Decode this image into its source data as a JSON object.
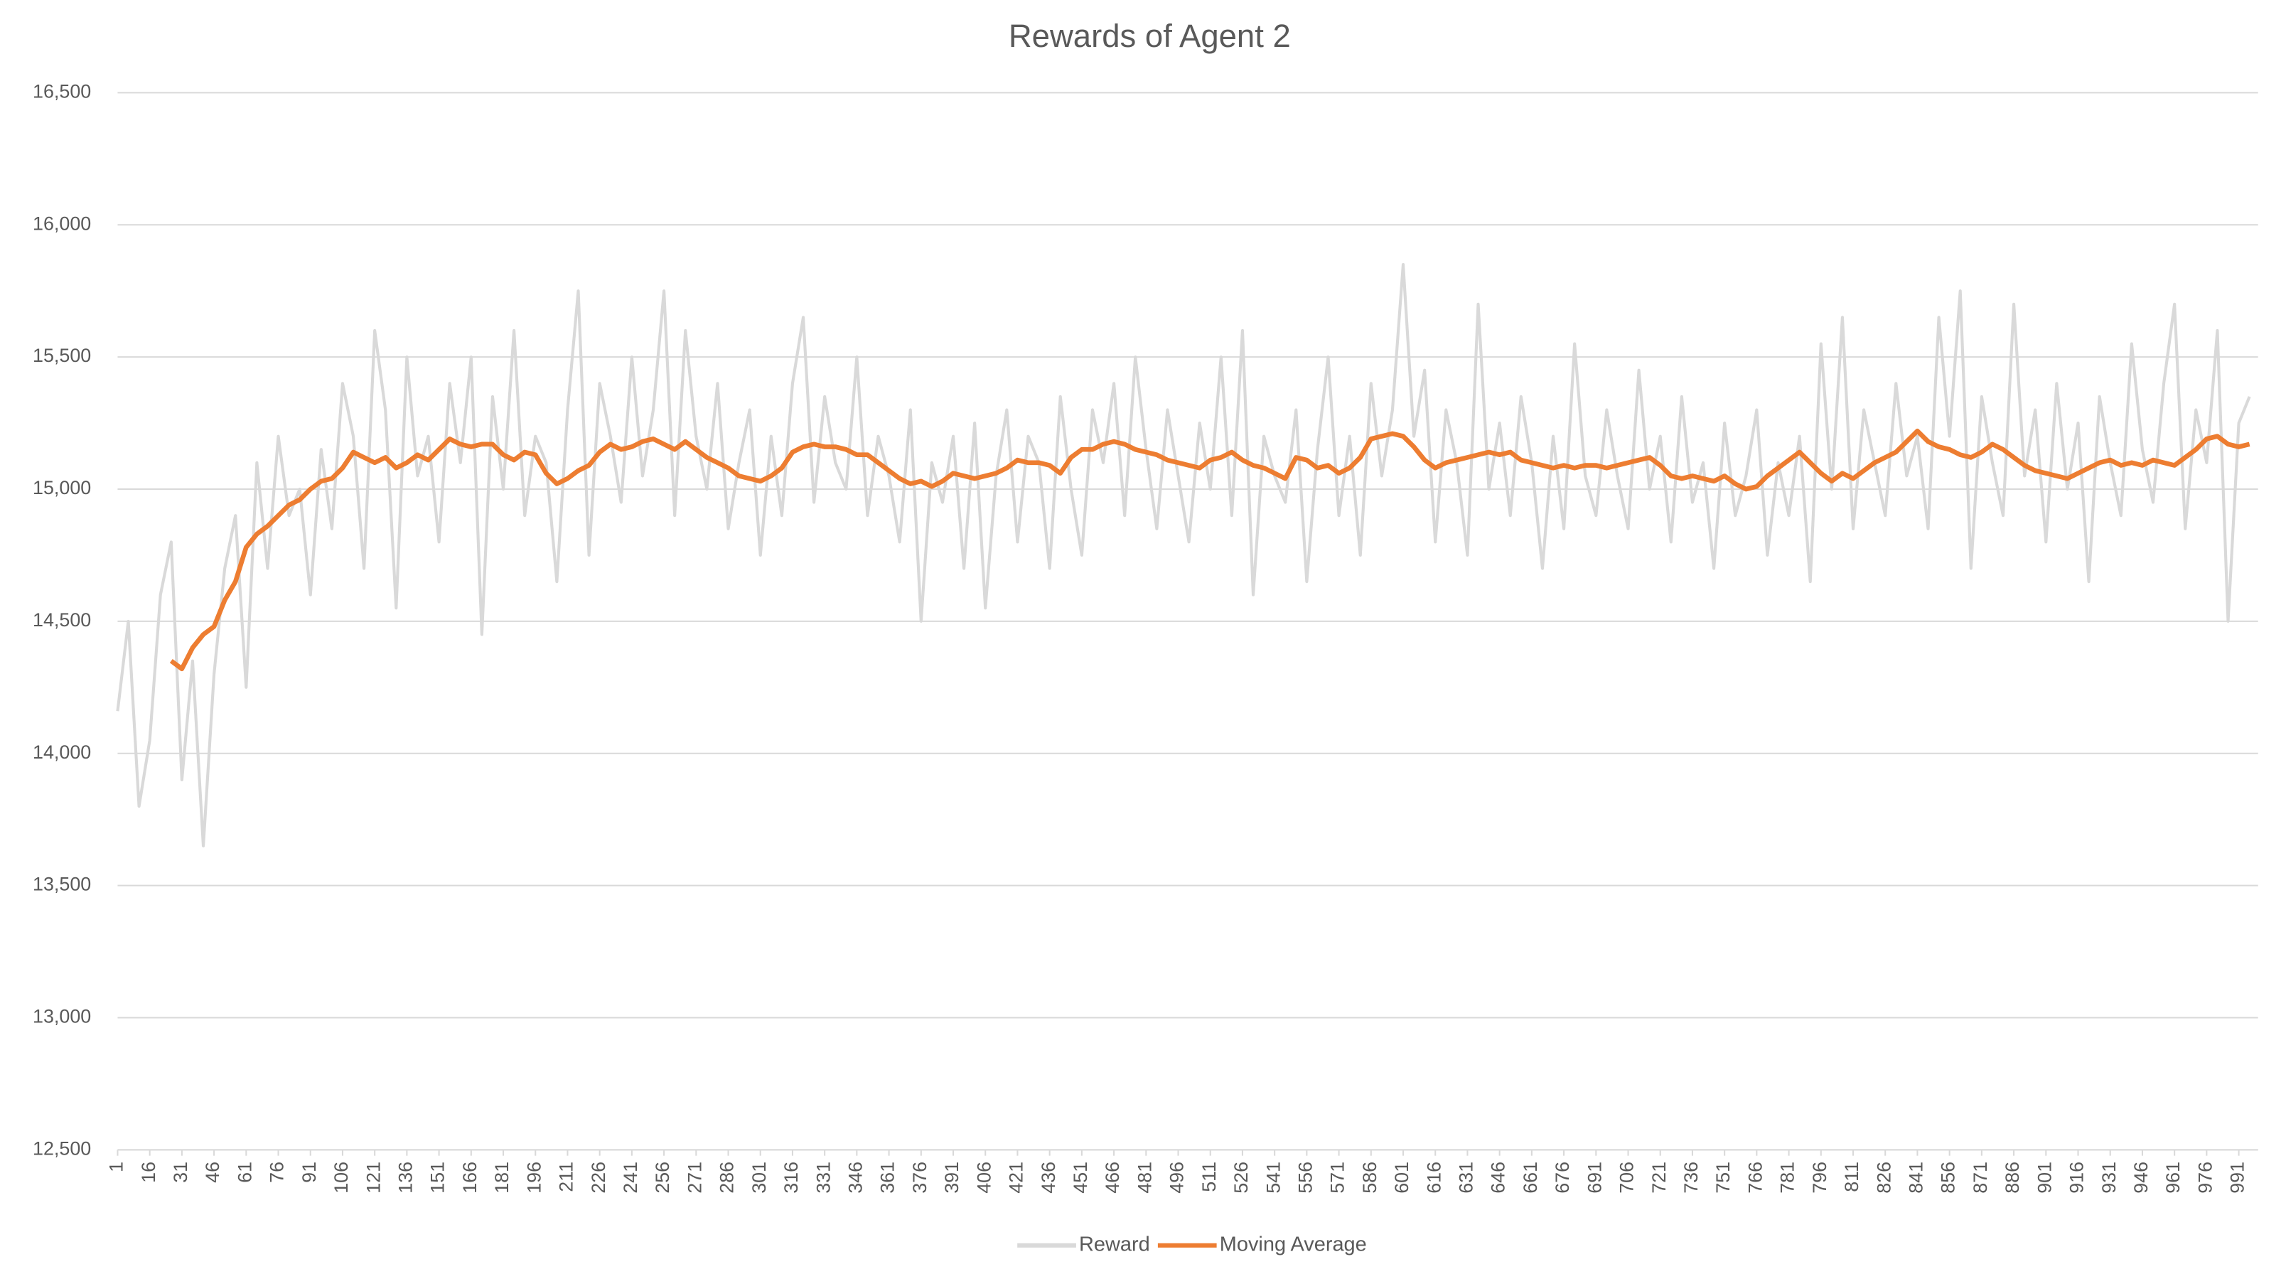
{
  "chart_data": {
    "type": "line",
    "title": "Rewards of Agent 2",
    "x": [
      1,
      6,
      11,
      16,
      21,
      26,
      31,
      36,
      41,
      46,
      51,
      56,
      61,
      66,
      71,
      76,
      81,
      86,
      91,
      96,
      101,
      106,
      111,
      116,
      121,
      126,
      131,
      136,
      141,
      146,
      151,
      156,
      161,
      166,
      171,
      176,
      181,
      186,
      191,
      196,
      201,
      206,
      211,
      216,
      221,
      226,
      231,
      236,
      241,
      246,
      251,
      256,
      261,
      266,
      271,
      276,
      281,
      286,
      291,
      296,
      301,
      306,
      311,
      316,
      321,
      326,
      331,
      336,
      341,
      346,
      351,
      356,
      361,
      366,
      371,
      376,
      381,
      386,
      391,
      396,
      401,
      406,
      411,
      416,
      421,
      426,
      431,
      436,
      441,
      446,
      451,
      456,
      461,
      466,
      471,
      476,
      481,
      486,
      491,
      496,
      501,
      506,
      511,
      516,
      521,
      526,
      531,
      536,
      541,
      546,
      551,
      556,
      561,
      566,
      571,
      576,
      581,
      586,
      591,
      596,
      601,
      606,
      611,
      616,
      621,
      626,
      631,
      636,
      641,
      646,
      651,
      656,
      661,
      666,
      671,
      676,
      681,
      686,
      691,
      696,
      701,
      706,
      711,
      716,
      721,
      726,
      731,
      736,
      741,
      746,
      751,
      756,
      761,
      766,
      771,
      776,
      781,
      786,
      791,
      796,
      801,
      806,
      811,
      816,
      821,
      826,
      831,
      836,
      841,
      846,
      851,
      856,
      861,
      866,
      871,
      876,
      881,
      886,
      891,
      896,
      901,
      906,
      911,
      916,
      921,
      926,
      931,
      936,
      941,
      946,
      951,
      956,
      961,
      966,
      971,
      976,
      981,
      986,
      991,
      996
    ],
    "series": [
      {
        "name": "Reward",
        "color": "#d9d9d9",
        "values": [
          14160,
          14500,
          13800,
          14050,
          14600,
          14800,
          13900,
          14350,
          13650,
          14300,
          14700,
          14900,
          14250,
          15100,
          14700,
          15200,
          14900,
          15000,
          14600,
          15150,
          14850,
          15400,
          15200,
          14700,
          15600,
          15300,
          14550,
          15500,
          15050,
          15200,
          14800,
          15400,
          15100,
          15500,
          14450,
          15350,
          15000,
          15600,
          14900,
          15200,
          15100,
          14650,
          15300,
          15750,
          14750,
          15400,
          15200,
          14950,
          15500,
          15050,
          15300,
          15750,
          14900,
          15600,
          15200,
          15000,
          15400,
          14850,
          15100,
          15300,
          14750,
          15200,
          14900,
          15400,
          15650,
          14950,
          15350,
          15100,
          15000,
          15500,
          14900,
          15200,
          15050,
          14800,
          15300,
          14500,
          15100,
          14950,
          15200,
          14700,
          15250,
          14550,
          15050,
          15300,
          14800,
          15200,
          15100,
          14700,
          15350,
          15000,
          14750,
          15300,
          15100,
          15400,
          14900,
          15500,
          15150,
          14850,
          15300,
          15050,
          14800,
          15250,
          15000,
          15500,
          14900,
          15600,
          14600,
          15200,
          15050,
          14950,
          15300,
          14650,
          15150,
          15500,
          14900,
          15200,
          14750,
          15400,
          15050,
          15300,
          15850,
          15200,
          15450,
          14800,
          15300,
          15100,
          14750,
          15700,
          15000,
          15250,
          14900,
          15350,
          15100,
          14700,
          15200,
          14850,
          15550,
          15050,
          14900,
          15300,
          15050,
          14850,
          15450,
          15000,
          15200,
          14800,
          15350,
          14950,
          15100,
          14700,
          15250,
          14900,
          15050,
          15300,
          14750,
          15100,
          14900,
          15200,
          14650,
          15550,
          15000,
          15650,
          14850,
          15300,
          15100,
          14900,
          15400,
          15050,
          15200,
          14850,
          15650,
          15200,
          15750,
          14700,
          15350,
          15100,
          14900,
          15700,
          15050,
          15300,
          14800,
          15400,
          15000,
          15250,
          14650,
          15350,
          15100,
          14900,
          15550,
          15150,
          14950,
          15400,
          15700,
          14850,
          15300,
          15100,
          15600,
          14500,
          15250,
          15350
        ]
      },
      {
        "name": "Moving Average",
        "color": "#ed7d31",
        "values": [
          null,
          null,
          null,
          null,
          null,
          14350,
          14320,
          14400,
          14450,
          14480,
          14580,
          14650,
          14780,
          14830,
          14860,
          14900,
          14940,
          14960,
          15000,
          15030,
          15040,
          15080,
          15140,
          15120,
          15100,
          15120,
          15080,
          15100,
          15130,
          15110,
          15150,
          15190,
          15170,
          15160,
          15170,
          15170,
          15130,
          15110,
          15140,
          15130,
          15060,
          15020,
          15040,
          15070,
          15090,
          15140,
          15170,
          15150,
          15160,
          15180,
          15190,
          15170,
          15150,
          15180,
          15150,
          15120,
          15100,
          15080,
          15050,
          15040,
          15030,
          15050,
          15080,
          15140,
          15160,
          15170,
          15160,
          15160,
          15150,
          15130,
          15130,
          15100,
          15070,
          15040,
          15020,
          15030,
          15010,
          15030,
          15060,
          15050,
          15040,
          15050,
          15060,
          15080,
          15110,
          15100,
          15100,
          15090,
          15060,
          15120,
          15150,
          15150,
          15170,
          15180,
          15170,
          15150,
          15140,
          15130,
          15110,
          15100,
          15090,
          15080,
          15110,
          15120,
          15140,
          15110,
          15090,
          15080,
          15060,
          15040,
          15120,
          15110,
          15080,
          15090,
          15060,
          15080,
          15120,
          15190,
          15200,
          15210,
          15200,
          15160,
          15110,
          15080,
          15100,
          15110,
          15120,
          15130,
          15140,
          15130,
          15140,
          15110,
          15100,
          15090,
          15080,
          15090,
          15080,
          15090,
          15090,
          15080,
          15090,
          15100,
          15110,
          15120,
          15090,
          15050,
          15040,
          15050,
          15040,
          15030,
          15050,
          15020,
          15000,
          15010,
          15050,
          15080,
          15110,
          15140,
          15100,
          15060,
          15030,
          15060,
          15040,
          15070,
          15100,
          15120,
          15140,
          15180,
          15220,
          15180,
          15160,
          15150,
          15130,
          15120,
          15140,
          15170,
          15150,
          15120,
          15090,
          15070,
          15060,
          15050,
          15040,
          15060,
          15080,
          15100,
          15110,
          15090,
          15100,
          15090,
          15110,
          15100,
          15090,
          15120,
          15150,
          15190,
          15200,
          15170,
          15160,
          15170
        ]
      }
    ],
    "xlim": [
      1,
      1000
    ],
    "xticks": [
      1,
      16,
      31,
      46,
      61,
      76,
      91,
      106,
      121,
      136,
      151,
      166,
      181,
      196,
      211,
      226,
      241,
      256,
      271,
      286,
      301,
      316,
      331,
      346,
      361,
      376,
      391,
      406,
      421,
      436,
      451,
      466,
      481,
      496,
      511,
      526,
      541,
      556,
      571,
      586,
      601,
      616,
      631,
      646,
      661,
      676,
      691,
      706,
      721,
      736,
      751,
      766,
      781,
      796,
      811,
      826,
      841,
      856,
      871,
      886,
      901,
      916,
      931,
      946,
      961,
      976,
      991
    ],
    "ylim": [
      12500,
      16500
    ],
    "yticks": [
      {
        "value": 12500,
        "label": "12,500"
      },
      {
        "value": 13000,
        "label": "13,000"
      },
      {
        "value": 13500,
        "label": "13,500"
      },
      {
        "value": 14000,
        "label": "14,000"
      },
      {
        "value": 14500,
        "label": "14,500"
      },
      {
        "value": 15000,
        "label": "15,000"
      },
      {
        "value": 15500,
        "label": "15,500"
      },
      {
        "value": 16000,
        "label": "16,000"
      },
      {
        "value": 16500,
        "label": "16,500"
      }
    ],
    "grid": true,
    "legend": "bottom"
  }
}
